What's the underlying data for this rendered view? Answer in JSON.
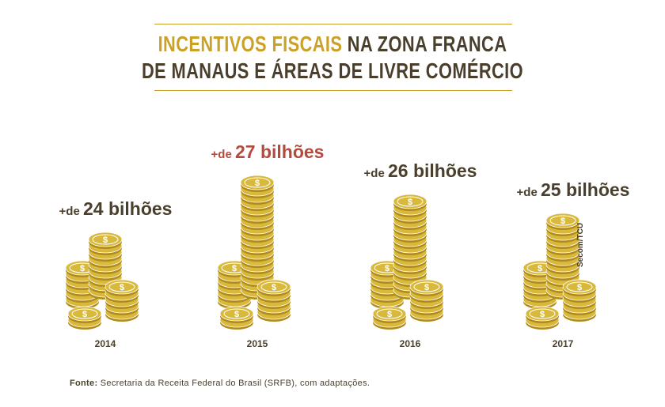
{
  "title": {
    "line1_gold": "INCENTIVOS FISCAIS",
    "line1_rest": " NA ZONA FRANCA",
    "line2": "DE MANAUS E ÁREAS DE LIVRE COMÉRCIO"
  },
  "colors": {
    "gold": "#c9a227",
    "coin_light": "#d9b93c",
    "coin_dark": "#b08a1a",
    "brown": "#4a3f2c",
    "highlight": "#b5493c"
  },
  "chart_data": {
    "type": "bar",
    "categories": [
      "2014",
      "2015",
      "2016",
      "2017"
    ],
    "values": [
      24,
      27,
      26,
      25
    ],
    "unit": "bilhões",
    "value_labels": [
      {
        "prefix": "+de",
        "main": "24 bilhões"
      },
      {
        "prefix": "+de",
        "main": "27 bilhões"
      },
      {
        "prefix": "+de",
        "main": "26 bilhões"
      },
      {
        "prefix": "+de",
        "main": "25 bilhões"
      }
    ],
    "highlight_index": 1,
    "icon": "coin-stack-icon"
  },
  "footer": {
    "source_label": "Fonte:",
    "source_text": " Secretaria da Receita Federal do Brasil (SRFB), com adaptações."
  },
  "credit": "Secom/TCU"
}
